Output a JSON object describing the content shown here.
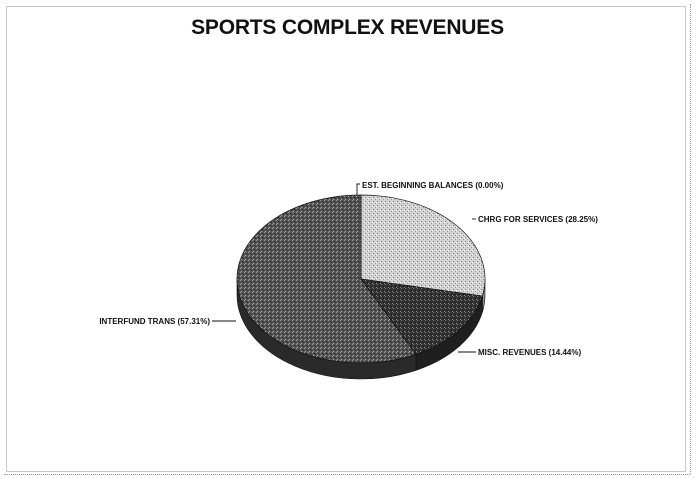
{
  "chart_data": {
    "type": "pie",
    "title": "SPORTS COMPLEX REVENUES",
    "slices": [
      {
        "label": "CHRG FOR SERVICES (28.25%)",
        "value": 28.25,
        "color": "#d9d9d9"
      },
      {
        "label": "MISC. REVENUES (14.44%)",
        "value": 14.44,
        "color": "#3a3a3a"
      },
      {
        "label": "INTERFUND TRANS (57.31%)",
        "value": 57.31,
        "color": "#5a5a5a"
      },
      {
        "label": "EST. BEGINNING BALANCES (0.00%)",
        "value": 0.0,
        "color": "#222222"
      }
    ],
    "three_d": true
  }
}
